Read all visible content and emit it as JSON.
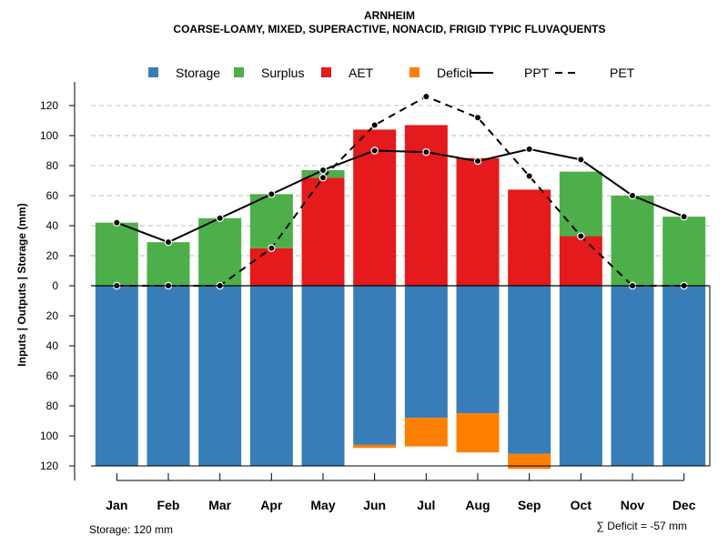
{
  "chart_data": {
    "type": "bar",
    "title": "ARNHEIM",
    "subtitle": "COARSE-LOAMY, MIXED, SUPERACTIVE, NONACID, FRIGID TYPIC FLUVAQUENTS",
    "ylabel": "Inputs | Outputs | Storage    (mm)",
    "categories": [
      "Jan",
      "Feb",
      "Mar",
      "Apr",
      "May",
      "Jun",
      "Jul",
      "Aug",
      "Sep",
      "Oct",
      "Nov",
      "Dec"
    ],
    "yticks_up": [
      "20",
      "40",
      "60",
      "80",
      "100",
      "120"
    ],
    "yticks_down": [
      "0",
      "20",
      "40",
      "60",
      "80",
      "100",
      "120"
    ],
    "ylim": [
      -130,
      130
    ],
    "legend": [
      {
        "label": "Storage",
        "kind": "box",
        "color": "#377EB8"
      },
      {
        "label": "Surplus",
        "kind": "box",
        "color": "#4DAF4A"
      },
      {
        "label": "AET",
        "kind": "box",
        "color": "#E41A1C"
      },
      {
        "label": "Deficit",
        "kind": "box",
        "color": "#FF7F00"
      },
      {
        "label": "PPT",
        "kind": "solid",
        "color": "#000000"
      },
      {
        "label": "PET",
        "kind": "dashed",
        "color": "#000000"
      }
    ],
    "series": [
      {
        "name": "AET",
        "values": [
          0,
          0,
          0,
          25,
          72,
          104,
          107,
          85,
          64,
          33,
          0,
          0
        ]
      },
      {
        "name": "Surplus",
        "values": [
          42,
          29,
          45,
          36,
          5,
          0,
          0,
          0,
          0,
          43,
          60,
          46
        ]
      },
      {
        "name": "Storage",
        "values": [
          120,
          120,
          120,
          120,
          120,
          106,
          88,
          85,
          112,
          120,
          120,
          120
        ]
      },
      {
        "name": "Deficit",
        "values": [
          0,
          0,
          0,
          0,
          0,
          2,
          19,
          26,
          10,
          0,
          0,
          0
        ]
      },
      {
        "name": "PPT",
        "values": [
          42,
          29,
          45,
          61,
          77,
          90,
          89,
          83,
          91,
          84,
          60,
          46
        ]
      },
      {
        "name": "PET",
        "values": [
          0,
          0,
          0,
          25,
          72,
          107,
          126,
          112,
          73,
          33,
          0,
          0
        ]
      }
    ],
    "storage_note": "Storage: 120 mm",
    "deficit_note": "∑ Deficit = -57 mm"
  }
}
